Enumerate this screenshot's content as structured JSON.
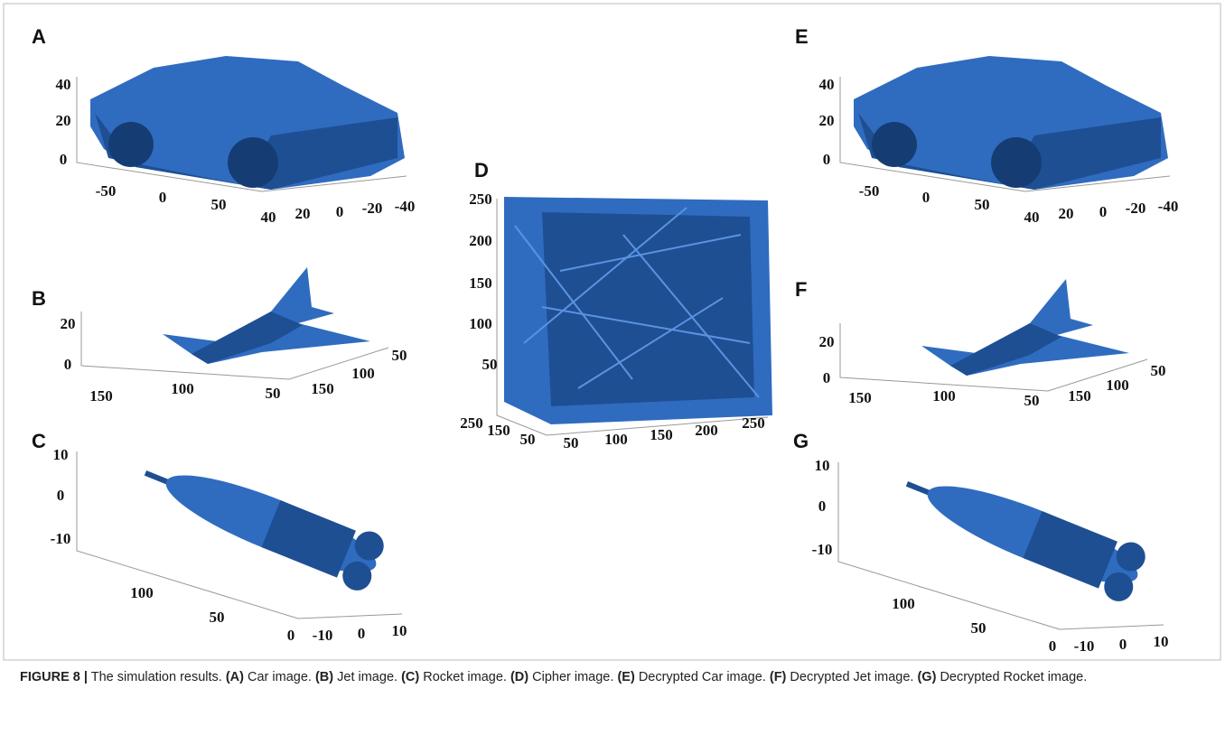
{
  "panels": [
    {
      "label": "A",
      "ticks": [
        "40",
        "20",
        "0",
        "-50",
        "0",
        "50",
        "40",
        "20",
        "0",
        "-20",
        "-40"
      ]
    },
    {
      "label": "B",
      "ticks": [
        "20",
        "0",
        "150",
        "100",
        "50",
        "150",
        "100",
        "50"
      ]
    },
    {
      "label": "C",
      "ticks": [
        "10",
        "0",
        "-10",
        "100",
        "50",
        "0",
        "-10",
        "0",
        "10"
      ]
    },
    {
      "label": "D",
      "ticks": [
        "250",
        "200",
        "150",
        "100",
        "50",
        "250",
        "150",
        "50",
        "50",
        "100",
        "150",
        "200",
        "250"
      ]
    },
    {
      "label": "E",
      "ticks": [
        "40",
        "20",
        "0",
        "-50",
        "0",
        "50",
        "40",
        "20",
        "0",
        "-20",
        "-40"
      ]
    },
    {
      "label": "F",
      "ticks": [
        "20",
        "0",
        "150",
        "100",
        "50",
        "150",
        "100",
        "50"
      ]
    },
    {
      "label": "G",
      "ticks": [
        "10",
        "0",
        "-10",
        "100",
        "50",
        "0",
        "-10",
        "0",
        "10"
      ]
    }
  ],
  "caption": {
    "label": "FIGURE 8 |",
    "intro": "The simulation results.",
    "items": [
      {
        "tag": "(A)",
        "text": "Car image."
      },
      {
        "tag": "(B)",
        "text": "Jet image."
      },
      {
        "tag": "(C)",
        "text": "Rocket image."
      },
      {
        "tag": "(D)",
        "text": "Cipher image."
      },
      {
        "tag": "(E)",
        "text": "Decrypted Car image."
      },
      {
        "tag": "(F)",
        "text": "Decrypted Jet image."
      },
      {
        "tag": "(G)",
        "text": "Decrypted Rocket image."
      }
    ]
  }
}
